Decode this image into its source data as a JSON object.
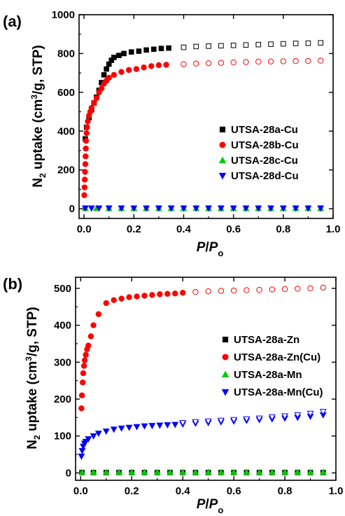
{
  "chart_data": [
    {
      "type": "scatter",
      "panel_label": "(a)",
      "xlabel": "P/P",
      "xlabel_sub": "o",
      "ylabel": "N2 uptake (cm3/g, STP)",
      "xlim": [
        -0.02,
        1.0
      ],
      "ylim": [
        -50,
        1000
      ],
      "xticks": [
        0.0,
        0.2,
        0.4,
        0.6,
        0.8,
        1.0
      ],
      "yticks": [
        0,
        200,
        400,
        600,
        800,
        1000
      ],
      "xtick_labels": [
        "0.0",
        "0.2",
        "0.4",
        "0.6",
        "0.8",
        "1.0"
      ],
      "ytick_labels": [
        "0",
        "200",
        "400",
        "600",
        "800",
        "1000"
      ],
      "grid": false,
      "legend_position": "right",
      "series": [
        {
          "name": "UTSA-28a-Cu",
          "color": "#000000",
          "marker": "square",
          "adsorption": {
            "x": [
              0.005,
              0.01,
              0.02,
              0.03,
              0.04,
              0.05,
              0.06,
              0.07,
              0.08,
              0.09,
              0.1,
              0.11,
              0.12,
              0.14,
              0.16,
              0.19,
              0.22,
              0.25,
              0.28,
              0.31,
              0.34
            ],
            "y": [
              360,
              420,
              470,
              510,
              545,
              575,
              610,
              650,
              690,
              720,
              745,
              765,
              780,
              790,
              800,
              808,
              812,
              818,
              822,
              826,
              828
            ]
          },
          "desorption": {
            "x": [
              0.4,
              0.45,
              0.5,
              0.55,
              0.6,
              0.65,
              0.7,
              0.75,
              0.8,
              0.85,
              0.9,
              0.95
            ],
            "y": [
              832,
              836,
              838,
              840,
              842,
              844,
              846,
              848,
              850,
              852,
              853,
              855
            ]
          }
        },
        {
          "name": "UTSA-28b-Cu",
          "color": "#ff0000",
          "marker": "circle",
          "adsorption": {
            "x": [
              0.001,
              0.002,
              0.003,
              0.004,
              0.005,
              0.006,
              0.007,
              0.008,
              0.01,
              0.012,
              0.015,
              0.02,
              0.025,
              0.03,
              0.04,
              0.05,
              0.06,
              0.07,
              0.08,
              0.09,
              0.1,
              0.12,
              0.15,
              0.18,
              0.21,
              0.24,
              0.27,
              0.3,
              0.33
            ],
            "y": [
              70,
              110,
              150,
              190,
              230,
              270,
              310,
              350,
              390,
              420,
              450,
              480,
              500,
              520,
              545,
              570,
              600,
              620,
              645,
              660,
              675,
              690,
              705,
              715,
              720,
              728,
              735,
              740,
              742
            ]
          },
          "desorption": {
            "x": [
              0.4,
              0.45,
              0.5,
              0.55,
              0.6,
              0.65,
              0.7,
              0.75,
              0.8,
              0.85,
              0.9,
              0.95
            ],
            "y": [
              745,
              748,
              750,
              752,
              754,
              756,
              758,
              759,
              760,
              761,
              762,
              763
            ]
          }
        },
        {
          "name": "UTSA-28c-Cu",
          "color": "#00cc00",
          "marker": "triangle-up",
          "adsorption": {
            "x": [
              0.005,
              0.05,
              0.1,
              0.15,
              0.2,
              0.25,
              0.3,
              0.35,
              0.4,
              0.45,
              0.5,
              0.55,
              0.6,
              0.65,
              0.7,
              0.75,
              0.8,
              0.85,
              0.9,
              0.95
            ],
            "y": [
              2,
              2,
              2,
              2,
              2,
              2,
              2,
              2,
              2,
              2,
              2,
              2,
              2,
              2,
              2,
              2,
              2,
              2,
              2,
              2
            ]
          },
          "desorption": {
            "x": [],
            "y": []
          }
        },
        {
          "name": "UTSA-28d-Cu",
          "color": "#0000ff",
          "marker": "triangle-down",
          "adsorption": {
            "x": [
              0.005,
              0.03,
              0.06,
              0.1,
              0.15,
              0.2,
              0.25,
              0.3,
              0.35,
              0.4,
              0.45,
              0.5,
              0.55,
              0.6,
              0.65,
              0.7,
              0.75,
              0.8,
              0.85,
              0.9,
              0.95
            ],
            "y": [
              3,
              3,
              3,
              3,
              3,
              3,
              3,
              3,
              3,
              3,
              3,
              3,
              3,
              3,
              3,
              3,
              3,
              3,
              3,
              3,
              3
            ]
          },
          "desorption": {
            "x": [],
            "y": []
          }
        }
      ]
    },
    {
      "type": "scatter",
      "panel_label": "(b)",
      "xlabel": "P/P",
      "xlabel_sub": "o",
      "ylabel": "N2 uptake (cm3/g, STP)",
      "xlim": [
        -0.02,
        1.0
      ],
      "ylim": [
        -20,
        530
      ],
      "xticks": [
        0.0,
        0.2,
        0.4,
        0.6,
        0.8,
        1.0
      ],
      "yticks": [
        0,
        100,
        200,
        300,
        400,
        500
      ],
      "xtick_labels": [
        "0.0",
        "0.2",
        "0.4",
        "0.6",
        "0.8",
        "1.0"
      ],
      "ytick_labels": [
        "0",
        "100",
        "200",
        "300",
        "400",
        "500"
      ],
      "grid": false,
      "legend_position": "right",
      "series": [
        {
          "name": "UTSA-28a-Zn",
          "color": "#000000",
          "marker": "square",
          "adsorption": {
            "x": [
              0.005,
              0.05,
              0.1,
              0.15,
              0.2,
              0.25,
              0.3,
              0.35,
              0.4,
              0.45,
              0.5,
              0.55,
              0.6,
              0.65,
              0.7,
              0.75,
              0.8,
              0.85,
              0.9,
              0.95
            ],
            "y": [
              1,
              1,
              1,
              1,
              1,
              1,
              1,
              1,
              1,
              1,
              1,
              1,
              1,
              1,
              1,
              1,
              1,
              1,
              1,
              1
            ]
          },
          "desorption": {
            "x": [],
            "y": []
          }
        },
        {
          "name": "UTSA-28a-Zn(Cu)",
          "color": "#ff0000",
          "marker": "circle",
          "adsorption": {
            "x": [
              0.003,
              0.005,
              0.008,
              0.01,
              0.013,
              0.016,
              0.02,
              0.025,
              0.03,
              0.04,
              0.05,
              0.07,
              0.1,
              0.13,
              0.16,
              0.19,
              0.22,
              0.25,
              0.28,
              0.31,
              0.34,
              0.37,
              0.4
            ],
            "y": [
              175,
              210,
              245,
              270,
              290,
              305,
              320,
              335,
              345,
              370,
              400,
              430,
              460,
              468,
              472,
              476,
              478,
              480,
              482,
              484,
              485,
              486,
              488
            ]
          },
          "desorption": {
            "x": [
              0.45,
              0.5,
              0.55,
              0.6,
              0.65,
              0.7,
              0.75,
              0.8,
              0.85,
              0.9,
              0.95
            ],
            "y": [
              490,
              492,
              493,
              494,
              495,
              496,
              497,
              498,
              499,
              500,
              502
            ]
          }
        },
        {
          "name": "UTSA-28a-Mn",
          "color": "#00cc00",
          "marker": "triangle-up",
          "adsorption": {
            "x": [
              0.005,
              0.05,
              0.1,
              0.15,
              0.2,
              0.25,
              0.3,
              0.35,
              0.4,
              0.45,
              0.5,
              0.55,
              0.6,
              0.65,
              0.7,
              0.75,
              0.8,
              0.85,
              0.9,
              0.95
            ],
            "y": [
              2,
              2,
              2,
              2,
              2,
              2,
              2,
              2,
              2,
              2,
              2,
              2,
              2,
              2,
              2,
              2,
              2,
              2,
              2,
              2
            ]
          },
          "desorption": {
            "x": [],
            "y": []
          }
        },
        {
          "name": "UTSA-28a-Mn(Cu)",
          "color": "#0000ff",
          "marker": "triangle-down",
          "adsorption": {
            "x": [
              0.003,
              0.006,
              0.01,
              0.015,
              0.02,
              0.03,
              0.05,
              0.07,
              0.1,
              0.13,
              0.16,
              0.19,
              0.22,
              0.25,
              0.28,
              0.31,
              0.34,
              0.37,
              0.4,
              0.45,
              0.5,
              0.55,
              0.6,
              0.65,
              0.7,
              0.75,
              0.8,
              0.85,
              0.9,
              0.95
            ],
            "y": [
              45,
              60,
              72,
              80,
              85,
              92,
              100,
              107,
              113,
              118,
              121,
              123,
              125,
              127,
              128,
              129,
              130,
              131,
              132,
              134,
              136,
              138,
              140,
              142,
              144,
              146,
              148,
              150,
              153,
              157
            ]
          },
          "desorption": {
            "x": [
              0.4,
              0.45,
              0.5,
              0.55,
              0.6,
              0.65,
              0.7,
              0.75,
              0.8,
              0.85,
              0.9,
              0.95
            ],
            "y": [
              136,
              138,
              140,
              142,
              144,
              146,
              148,
              151,
              154,
              157,
              161,
              166
            ]
          }
        }
      ]
    }
  ]
}
